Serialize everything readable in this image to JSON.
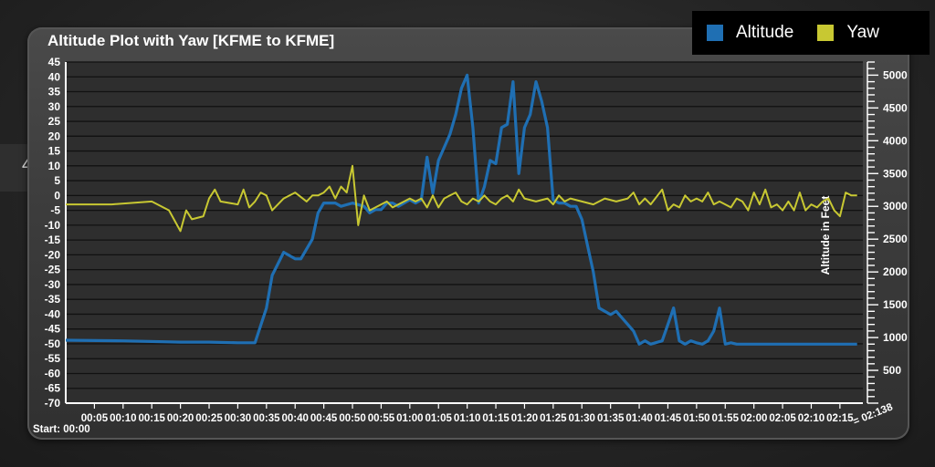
{
  "side_tab_label": "4",
  "legend": {
    "items": [
      {
        "label": "Altitude",
        "color": "#1f6fb3"
      },
      {
        "label": "Yaw",
        "color": "#c8c832"
      }
    ]
  },
  "chart_data": {
    "type": "line",
    "title": "Altitude Plot with Yaw [KFME to KFME]",
    "y2label": "Altitude in Feet",
    "start_label": "Start: 00:00",
    "end_label": "= 02:138",
    "x_ticks": [
      "00:05",
      "00:10",
      "00:15",
      "00:20",
      "00:25",
      "00:30",
      "00:35",
      "00:40",
      "00:45",
      "00:50",
      "00:55",
      "01:00",
      "01:05",
      "01:10",
      "01:15",
      "01:20",
      "01:25",
      "01:30",
      "01:35",
      "01:40",
      "01:45",
      "01:50",
      "01:55",
      "02:00",
      "02:05",
      "02:10",
      "02:15"
    ],
    "x_range_min": [
      0,
      139
    ],
    "y_left": {
      "range": [
        -70,
        45
      ],
      "ticks": [
        45,
        40,
        35,
        30,
        25,
        20,
        15,
        10,
        5,
        0,
        -5,
        -10,
        -15,
        -20,
        -25,
        -30,
        -35,
        -40,
        -45,
        -50,
        -55,
        -60,
        -65,
        -70
      ]
    },
    "y_right": {
      "range": [
        0,
        5200
      ],
      "ticks": [
        500,
        1000,
        1500,
        2000,
        2500,
        3000,
        3500,
        4000,
        4500,
        5000
      ]
    },
    "grid": true,
    "legend_position": "top-right",
    "series": [
      {
        "name": "Altitude",
        "axis": "right",
        "color": "#1f6fb3",
        "x": [
          0,
          10,
          20,
          25,
          30,
          33,
          35,
          36,
          38,
          40,
          41,
          43,
          44,
          45,
          47,
          48,
          50,
          52,
          53,
          54,
          55,
          56,
          57,
          58,
          59,
          60,
          61,
          62,
          63,
          64,
          65,
          66,
          67,
          68,
          69,
          70,
          71,
          72,
          73,
          74,
          75,
          76,
          77,
          78,
          79,
          80,
          81,
          82,
          83,
          84,
          85,
          86,
          87,
          88,
          89,
          90,
          91,
          92,
          93,
          94,
          95,
          96,
          97,
          98,
          99,
          100,
          101,
          102,
          104,
          105,
          106,
          107,
          108,
          109,
          110,
          111,
          112,
          113,
          114,
          115,
          116,
          117,
          118,
          119,
          120,
          121,
          122,
          123,
          124,
          125,
          126,
          127,
          128,
          129,
          130,
          131,
          132,
          133,
          134,
          135,
          136,
          137,
          138
        ],
        "y": [
          960,
          950,
          930,
          930,
          920,
          920,
          1450,
          1950,
          2300,
          2200,
          2200,
          2500,
          2900,
          3050,
          3050,
          3000,
          3050,
          3000,
          2900,
          2950,
          2950,
          3050,
          3050,
          3000,
          3050,
          3100,
          3050,
          3100,
          3750,
          3200,
          3700,
          3900,
          4100,
          4400,
          4800,
          5000,
          4200,
          3050,
          3300,
          3700,
          3650,
          4200,
          4250,
          4900,
          3500,
          4200,
          4400,
          4900,
          4600,
          4200,
          3100,
          3050,
          3050,
          3000,
          3000,
          2800,
          2400,
          2000,
          1450,
          1400,
          1350,
          1400,
          1300,
          1200,
          1100,
          900,
          950,
          900,
          950,
          1200,
          1450,
          950,
          900,
          950,
          920,
          900,
          950,
          1100,
          1450,
          900,
          920,
          900,
          900,
          900,
          900,
          900,
          900,
          900,
          900,
          900,
          900,
          900,
          900,
          900,
          900,
          900,
          900,
          900,
          900,
          900,
          900,
          900,
          900
        ],
        "note": ""
      },
      {
        "name": "Yaw",
        "axis": "left",
        "color": "#c8c832",
        "x": [
          0,
          8,
          15,
          18,
          20,
          21,
          22,
          24,
          25,
          26,
          27,
          30,
          31,
          32,
          33,
          34,
          35,
          36,
          38,
          40,
          42,
          43,
          44,
          45,
          46,
          47,
          48,
          49,
          50,
          51,
          52,
          53,
          54,
          55,
          56,
          57,
          58,
          59,
          60,
          61,
          62,
          63,
          64,
          65,
          66,
          67,
          68,
          69,
          70,
          71,
          72,
          73,
          74,
          75,
          76,
          77,
          78,
          79,
          80,
          82,
          84,
          85,
          86,
          87,
          88,
          90,
          92,
          94,
          96,
          98,
          99,
          100,
          101,
          102,
          104,
          105,
          106,
          107,
          108,
          109,
          110,
          111,
          112,
          113,
          114,
          115,
          116,
          117,
          118,
          119,
          120,
          121,
          122,
          123,
          124,
          125,
          126,
          127,
          128,
          129,
          130,
          131,
          132,
          133,
          134,
          135,
          136,
          137,
          138
        ],
        "y": [
          -3,
          -3,
          -2,
          -5,
          -12,
          -5,
          -8,
          -7,
          -1,
          2,
          -2,
          -3,
          2,
          -4,
          -2,
          1,
          0,
          -5,
          -1,
          1,
          -2,
          0,
          0,
          1,
          3,
          -1,
          3,
          1,
          10,
          -10,
          0,
          -5,
          -4,
          -3,
          -2,
          -4,
          -3,
          -2,
          -1,
          -2,
          -1,
          -4,
          0,
          -4,
          -1,
          0,
          1,
          -2,
          -3,
          -1,
          -2,
          0,
          -2,
          -3,
          -1,
          0,
          -2,
          2,
          -1,
          -2,
          -1,
          -3,
          0,
          -2,
          -1,
          -2,
          -3,
          -1,
          -2,
          -1,
          1,
          -3,
          -1,
          -3,
          2,
          -5,
          -3,
          -4,
          0,
          -2,
          -1,
          -2,
          1,
          -3,
          -2,
          -3,
          -4,
          -1,
          -2,
          -5,
          1,
          -3,
          2,
          -4,
          -3,
          -5,
          -2,
          -5,
          1,
          -5,
          -3,
          -4,
          -2,
          -1,
          -5,
          -7,
          1,
          0,
          0
        ]
      }
    ]
  }
}
